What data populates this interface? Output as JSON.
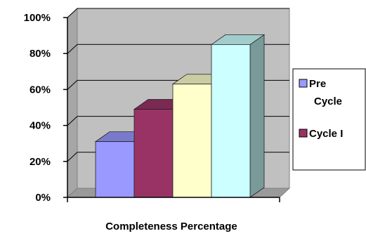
{
  "chart_data": {
    "type": "bar",
    "categories": [
      ""
    ],
    "series": [
      {
        "name": "Pre Cycle",
        "values": [
          31
        ],
        "color": "#9999ff"
      },
      {
        "name": "Cycle I",
        "values": [
          49
        ],
        "color": "#993366"
      },
      {
        "name": "",
        "values": [
          63
        ],
        "color": "#ffffcc"
      },
      {
        "name": "",
        "values": [
          85
        ],
        "color": "#ccffff"
      }
    ],
    "title": "",
    "xlabel": "Completeness Percentage",
    "ylabel": "",
    "ylim": [
      0,
      100
    ],
    "yticks": [
      "0%",
      "20%",
      "40%",
      "60%",
      "80%",
      "100%"
    ],
    "grid": true,
    "legend_position": "right",
    "style": "3d-column",
    "wall_color": "#c0c0c0"
  },
  "legend": {
    "items": [
      {
        "label_lines": [
          "Pre",
          "Cycle"
        ],
        "color": "#9999ff"
      },
      {
        "label_lines": [
          "Cycle I"
        ],
        "color": "#993366"
      }
    ]
  }
}
